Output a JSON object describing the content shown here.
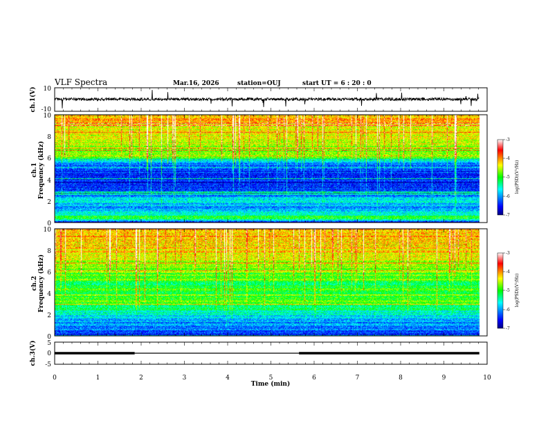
{
  "header": {
    "title": "VLF Spectra",
    "date": "Mar.16, 2026",
    "station": "station=OUJ",
    "start": "start  UT =   6 : 20 : 0"
  },
  "chart_data": [
    {
      "type": "line",
      "name": "ch1-waveform",
      "ylabel": "ch.1(V)",
      "ylim": [
        -10,
        10
      ],
      "yticks": [
        "10",
        "-10"
      ],
      "baseline": 0.3,
      "noise_amplitude": 1.2
    },
    {
      "type": "heatmap",
      "name": "ch1-spectrogram",
      "ylabel_top": "ch.1",
      "ylabel": "Frequency (kHz)",
      "ylim": [
        0,
        10
      ],
      "yticks": [
        "10",
        "8",
        "6",
        "4",
        "2",
        "0"
      ],
      "colorbar": {
        "label": "log(PSD)(V²/Hz)",
        "ticks": [
          "-3",
          "-4",
          "-5",
          "-6",
          "-7"
        ],
        "range": [
          -7,
          -3
        ]
      },
      "profile": [
        {
          "f": 0.0,
          "v": -6.6
        },
        {
          "f": 0.4,
          "v": -5.0
        },
        {
          "f": 1.2,
          "v": -6.1
        },
        {
          "f": 2.0,
          "v": -5.6
        },
        {
          "f": 3.0,
          "v": -6.3
        },
        {
          "f": 4.0,
          "v": -6.5
        },
        {
          "f": 5.5,
          "v": -6.2
        },
        {
          "f": 6.0,
          "v": -4.9
        },
        {
          "f": 7.0,
          "v": -4.6
        },
        {
          "f": 8.5,
          "v": -4.3
        },
        {
          "f": 10.0,
          "v": -4.1
        }
      ]
    },
    {
      "type": "heatmap",
      "name": "ch2-spectrogram",
      "ylabel_top": "ch.2",
      "ylabel": "Frequency (kHz)",
      "ylim": [
        0,
        10
      ],
      "yticks": [
        "10",
        "8",
        "6",
        "4",
        "2",
        "0"
      ],
      "colorbar": {
        "label": "log(PSD)(V²/Hz)",
        "ticks": [
          "-3",
          "-4",
          "-5",
          "-6",
          "-7"
        ],
        "range": [
          -7,
          -3
        ]
      },
      "profile": [
        {
          "f": 0.0,
          "v": -6.5
        },
        {
          "f": 0.5,
          "v": -6.2
        },
        {
          "f": 1.5,
          "v": -5.9
        },
        {
          "f": 2.5,
          "v": -5.3
        },
        {
          "f": 3.2,
          "v": -4.8
        },
        {
          "f": 4.0,
          "v": -5.0
        },
        {
          "f": 5.0,
          "v": -5.1
        },
        {
          "f": 6.5,
          "v": -4.6
        },
        {
          "f": 8.0,
          "v": -4.3
        },
        {
          "f": 10.0,
          "v": -4.1
        }
      ]
    },
    {
      "type": "line",
      "name": "ch3-signal",
      "ylabel": "ch.3(V)",
      "ylim": [
        -5,
        5
      ],
      "yticks": [
        "5",
        "0",
        "-5"
      ],
      "segments": [
        {
          "t0": 0.0,
          "t1": 1.85,
          "v": 0.0,
          "bold": true
        },
        {
          "t0": 1.85,
          "t1": 5.65,
          "v": 0.0,
          "bold": false
        },
        {
          "t0": 5.65,
          "t1": 9.82,
          "v": 0.0,
          "bold": true
        }
      ]
    }
  ],
  "x_axis": {
    "label": "Time (min)",
    "xlim": [
      0,
      10
    ],
    "data_end": 9.82,
    "ticks": [
      "0",
      "1",
      "2",
      "3",
      "4",
      "5",
      "6",
      "7",
      "8",
      "9",
      "10"
    ]
  }
}
